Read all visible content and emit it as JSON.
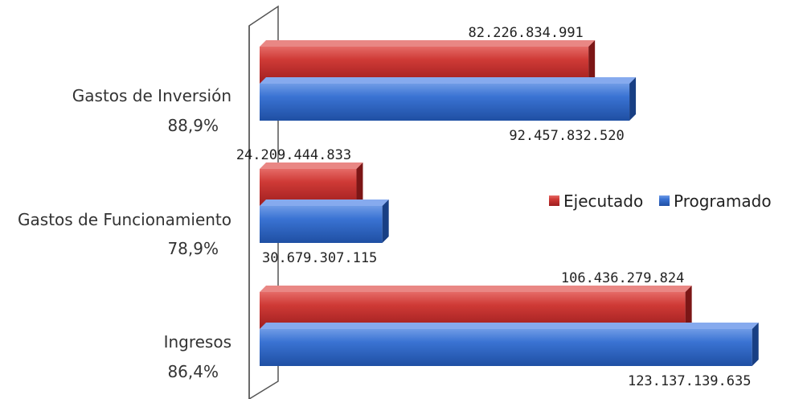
{
  "chart_data": {
    "type": "bar",
    "orientation": "horizontal",
    "categories": [
      {
        "name": "Gastos de Inversión",
        "pct": "88,9%"
      },
      {
        "name": "Gastos de Funcionamiento",
        "pct": "78,9%"
      },
      {
        "name": "Ingresos",
        "pct": "86,4%"
      }
    ],
    "series": [
      {
        "name": "Ejecutado",
        "color": "#c4282a",
        "values": [
          82226834991,
          24209444833,
          106436279824
        ],
        "labels": [
          "82.226.834.991",
          "24.209.444.833",
          "106.436.279.824"
        ]
      },
      {
        "name": "Programado",
        "color": "#2860c4",
        "values": [
          92457832520,
          30679307115,
          123137139635
        ],
        "labels": [
          "92.457.832.520",
          "30.679.307.115",
          "123.137.139.635"
        ]
      }
    ],
    "xlim": [
      0,
      125000000000
    ],
    "grid": false,
    "legend": "right",
    "title": "",
    "xlabel": "",
    "ylabel": ""
  }
}
